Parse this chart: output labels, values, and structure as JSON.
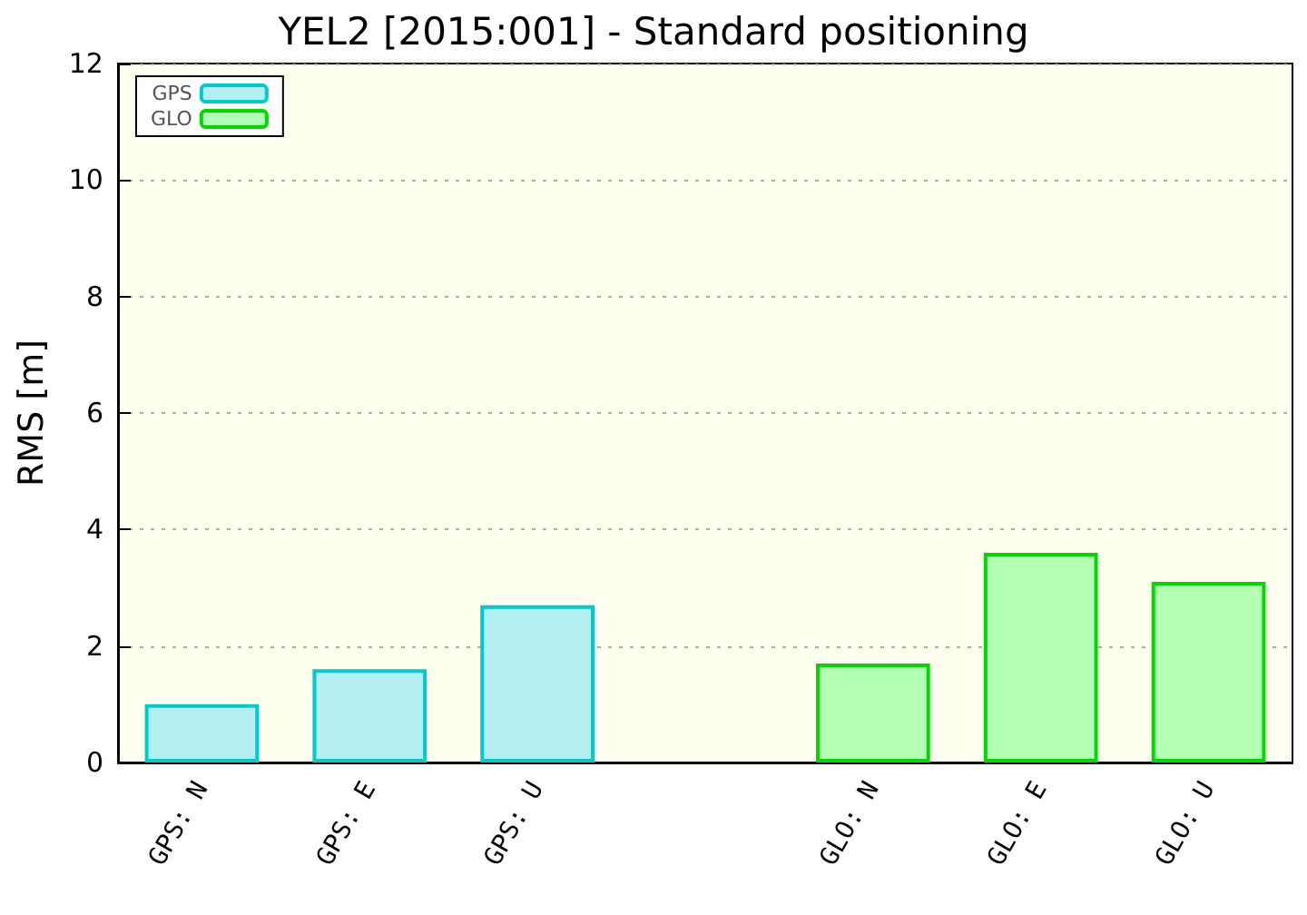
{
  "chart_data": {
    "type": "bar",
    "title": "YEL2 [2015:001] - Standard positioning",
    "ylabel": "RMS [m]",
    "categories": [
      "GPS: N",
      "GPS: E",
      "GPS: U",
      null,
      "GLO: N",
      "GLO: E",
      "GLO: U"
    ],
    "series": [
      {
        "name": "GPS",
        "color": "#b3eef0",
        "values": [
          1.0,
          1.6,
          2.7,
          null,
          null,
          null,
          null
        ]
      },
      {
        "name": "GLO",
        "color": "#b3ffb3",
        "values": [
          null,
          null,
          null,
          null,
          1.7,
          3.6,
          3.1
        ]
      }
    ],
    "stacked": true,
    "ylim": [
      0,
      12
    ],
    "yticks": [
      0,
      2,
      4,
      6,
      8,
      10,
      12
    ],
    "grid": "y",
    "legend": "top left"
  }
}
